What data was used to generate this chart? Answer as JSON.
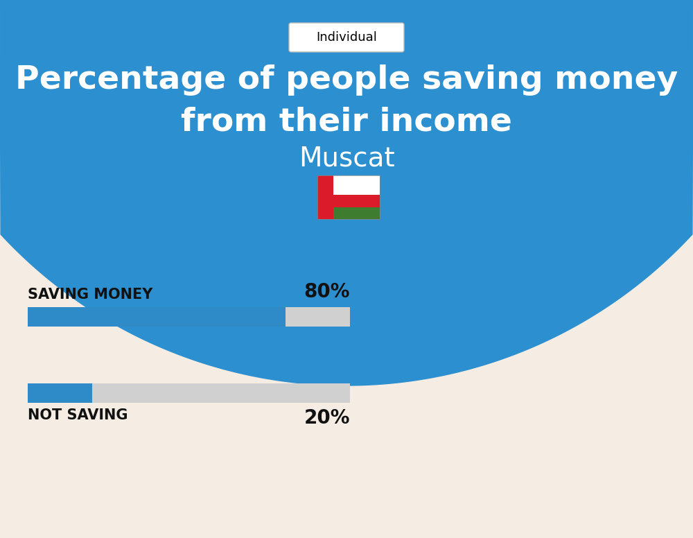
{
  "title_line1": "Percentage of people saving money",
  "title_line2": "from their income",
  "subtitle": "Muscat",
  "tag_label": "Individual",
  "bg_top_color": "#2B8FD0",
  "bg_bottom_color": "#F5EDE3",
  "title_color": "#FFFFFF",
  "subtitle_color": "#FFFFFF",
  "tag_bg": "#FFFFFF",
  "tag_text_color": "#000000",
  "bar1_label": "SAVING MONEY",
  "bar1_value": 80,
  "bar1_pct": "80%",
  "bar2_label": "NOT SAVING",
  "bar2_value": 20,
  "bar2_pct": "20%",
  "bar_filled_color": "#2E8BC8",
  "bar_empty_color": "#D0D0D0",
  "bar_label_color": "#111111",
  "bar_pct_color": "#111111",
  "label_fontsize": 15,
  "pct_fontsize": 20,
  "title_fontsize": 34,
  "subtitle_fontsize": 28,
  "tag_fontsize": 13,
  "fig_width": 10.0,
  "fig_height": 7.76
}
